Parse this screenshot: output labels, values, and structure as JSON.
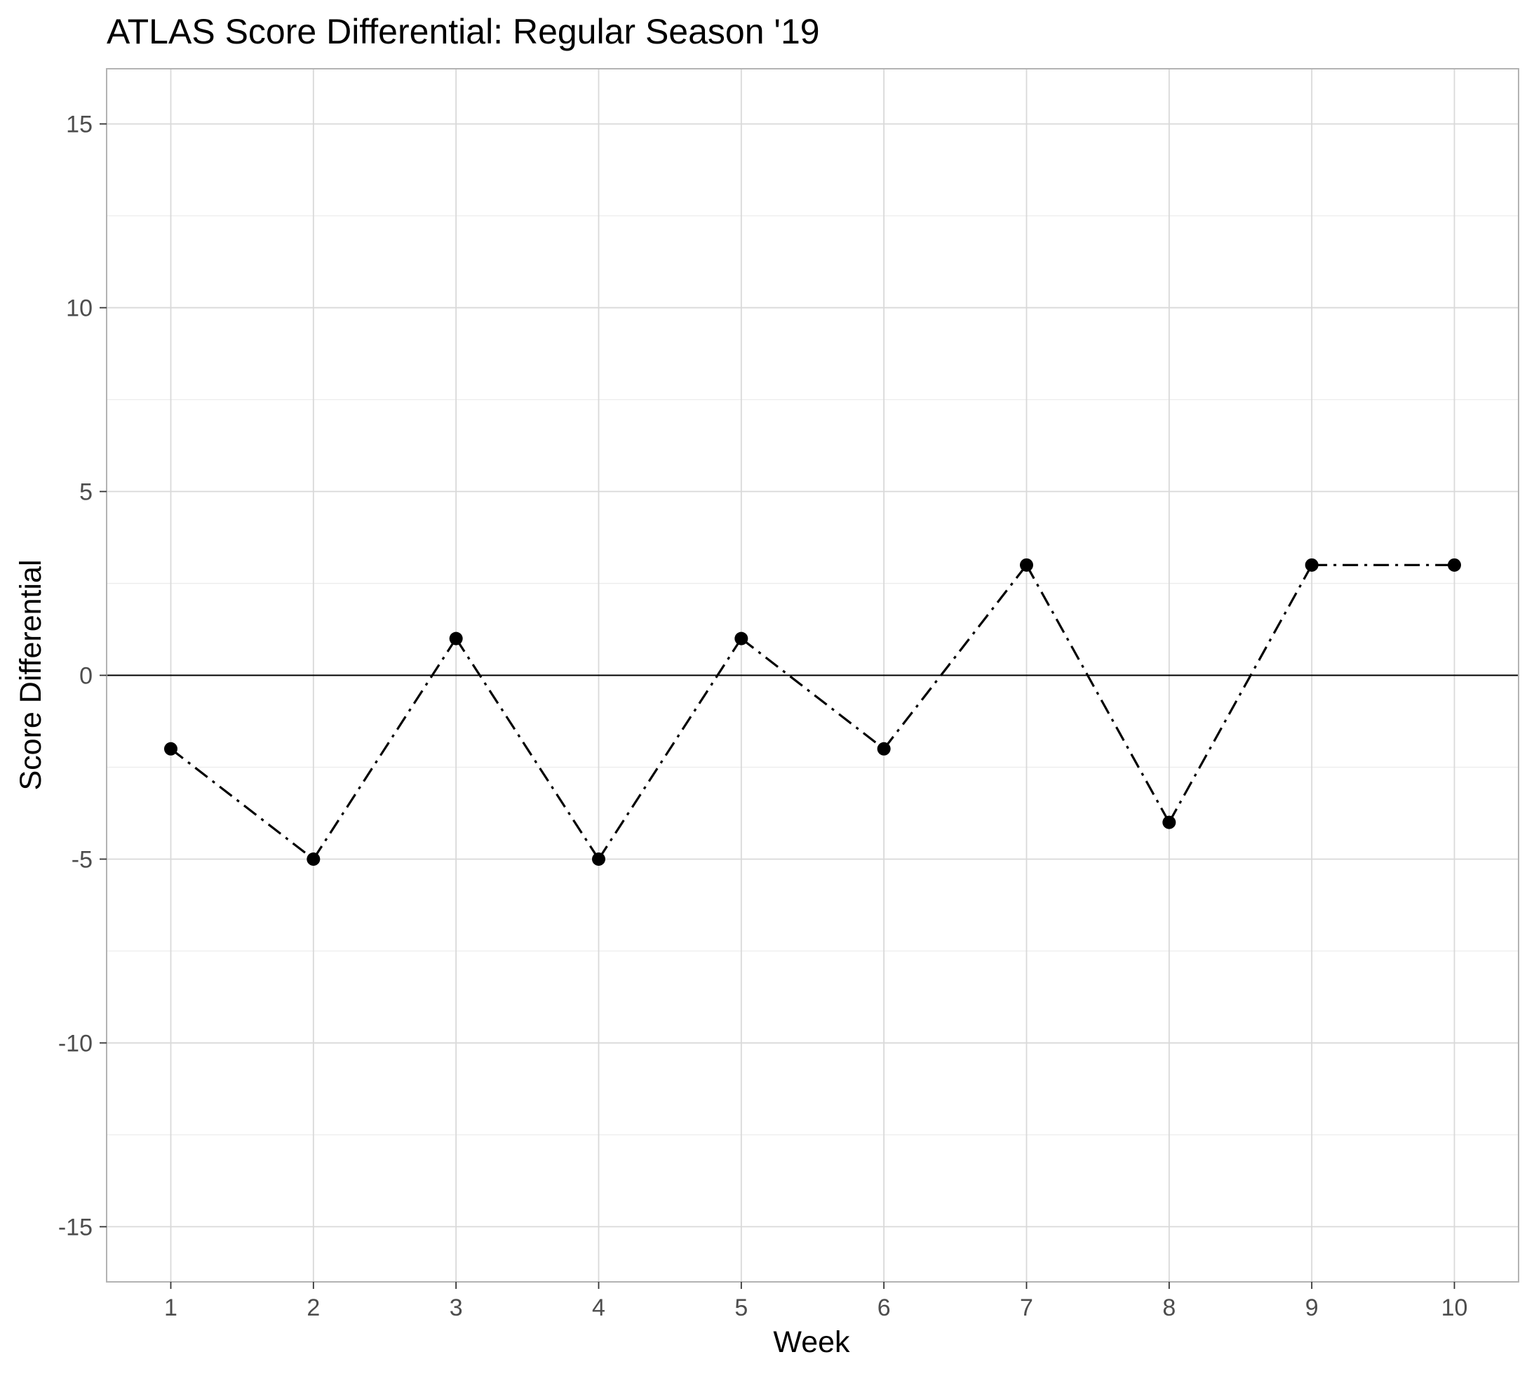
{
  "chart_data": {
    "type": "line",
    "title": "ATLAS Score Differential: Regular Season '19",
    "xlabel": "Week",
    "ylabel": "Score Differential",
    "x": [
      1,
      2,
      3,
      4,
      5,
      6,
      7,
      8,
      9,
      10
    ],
    "x_tick_labels": [
      "1",
      "2",
      "3",
      "4",
      "5",
      "6",
      "7",
      "8",
      "9",
      "10"
    ],
    "series": [
      {
        "values": [
          -2,
          -5,
          1,
          -5,
          1,
          -2,
          3,
          -4,
          3,
          3
        ]
      }
    ],
    "xlim": [
      0.55,
      10.45
    ],
    "ylim": [
      -16.5,
      16.5
    ],
    "y_ticks": [
      -15,
      -10,
      -5,
      0,
      5,
      10,
      15
    ],
    "y_tick_labels": [
      "-15",
      "-10",
      "-5",
      "0",
      "5",
      "10",
      "15"
    ],
    "reference_line_y": 0,
    "line_style": "dashed",
    "grid": true,
    "legend": "none",
    "colors": {
      "line": "#000000",
      "points": "#000000",
      "grid": "#d9d9d9",
      "panel_border": "#b3b3b3",
      "reference_line": "#000000"
    }
  }
}
